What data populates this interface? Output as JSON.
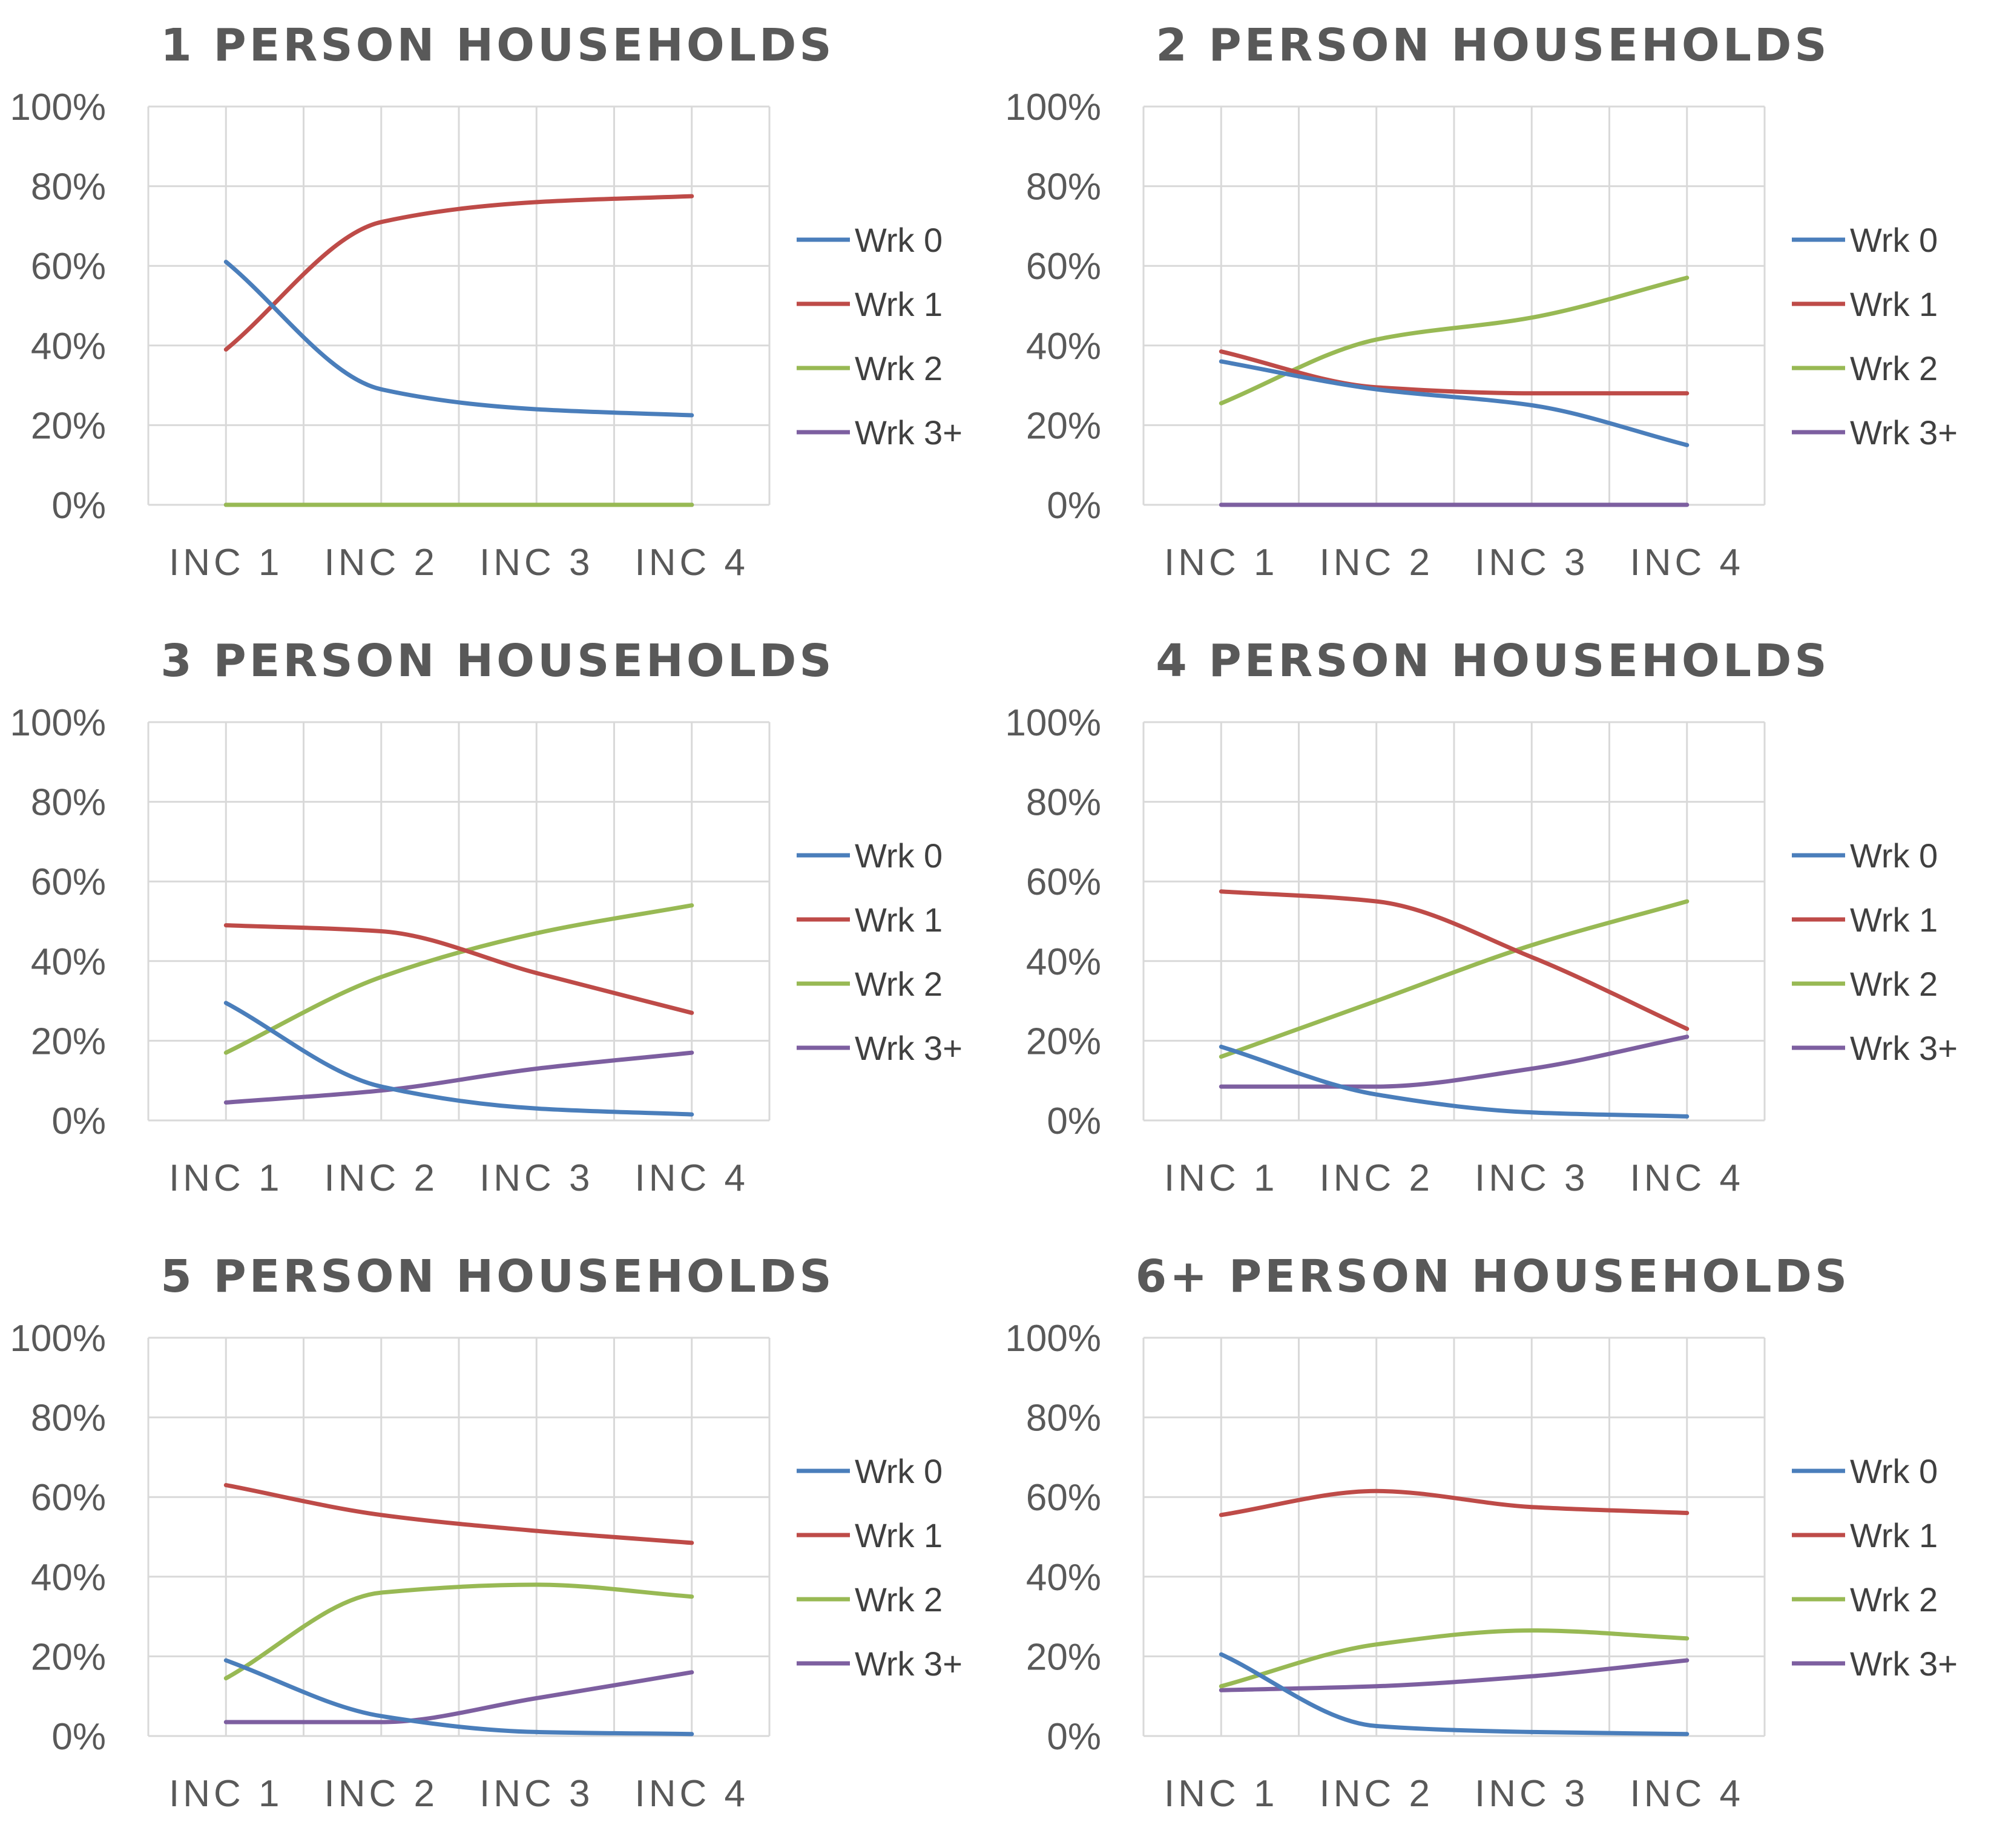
{
  "chart_data": [
    {
      "type": "line",
      "title": "1 PERSON HOUSEHOLDS",
      "categories": [
        "INC 1",
        "INC 2",
        "INC 3",
        "INC 4"
      ],
      "ylim": [
        0,
        100
      ],
      "yticks": [
        "0%",
        "20%",
        "40%",
        "60%",
        "80%",
        "100%"
      ],
      "grid": true,
      "legend": "right",
      "series": [
        {
          "name": "Wrk 0",
          "values": [
            61,
            29,
            24,
            22.5
          ]
        },
        {
          "name": "Wrk 1",
          "values": [
            39,
            71,
            76,
            77.5
          ]
        },
        {
          "name": "Wrk 2",
          "values": [
            0,
            0,
            0,
            0
          ]
        },
        {
          "name": "Wrk 3+",
          "values": [
            0,
            0,
            0,
            0
          ]
        }
      ]
    },
    {
      "type": "line",
      "title": "2 PERSON HOUSEHOLDS",
      "categories": [
        "INC 1",
        "INC 2",
        "INC 3",
        "INC 4"
      ],
      "ylim": [
        0,
        100
      ],
      "yticks": [
        "0%",
        "20%",
        "40%",
        "60%",
        "80%",
        "100%"
      ],
      "grid": true,
      "legend": "right",
      "series": [
        {
          "name": "Wrk 0",
          "values": [
            36,
            29,
            25,
            15
          ]
        },
        {
          "name": "Wrk 1",
          "values": [
            38.5,
            29.5,
            28,
            28
          ]
        },
        {
          "name": "Wrk 2",
          "values": [
            25.5,
            41.5,
            47,
            57
          ]
        },
        {
          "name": "Wrk 3+",
          "values": [
            0,
            0,
            0,
            0
          ]
        }
      ]
    },
    {
      "type": "line",
      "title": "3 PERSON HOUSEHOLDS",
      "categories": [
        "INC 1",
        "INC 2",
        "INC 3",
        "INC 4"
      ],
      "ylim": [
        0,
        100
      ],
      "yticks": [
        "0%",
        "20%",
        "40%",
        "60%",
        "80%",
        "100%"
      ],
      "grid": true,
      "legend": "right",
      "series": [
        {
          "name": "Wrk 0",
          "values": [
            29.5,
            8.5,
            3,
            1.5
          ]
        },
        {
          "name": "Wrk 1",
          "values": [
            49,
            47.5,
            37,
            27
          ]
        },
        {
          "name": "Wrk 2",
          "values": [
            17,
            36,
            47,
            54
          ]
        },
        {
          "name": "Wrk 3+",
          "values": [
            4.5,
            7.5,
            13,
            17
          ]
        }
      ]
    },
    {
      "type": "line",
      "title": "4 PERSON HOUSEHOLDS",
      "categories": [
        "INC 1",
        "INC 2",
        "INC 3",
        "INC 4"
      ],
      "ylim": [
        0,
        100
      ],
      "yticks": [
        "0%",
        "20%",
        "40%",
        "60%",
        "80%",
        "100%"
      ],
      "grid": true,
      "legend": "right",
      "series": [
        {
          "name": "Wrk 0",
          "values": [
            18.5,
            6.5,
            2,
            1
          ]
        },
        {
          "name": "Wrk 1",
          "values": [
            57.5,
            55,
            41,
            23
          ]
        },
        {
          "name": "Wrk 2",
          "values": [
            16,
            30,
            44,
            55
          ]
        },
        {
          "name": "Wrk 3+",
          "values": [
            8.5,
            8.5,
            13,
            21
          ]
        }
      ]
    },
    {
      "type": "line",
      "title": "5 PERSON HOUSEHOLDS",
      "categories": [
        "INC 1",
        "INC 2",
        "INC 3",
        "INC 4"
      ],
      "ylim": [
        0,
        100
      ],
      "yticks": [
        "0%",
        "20%",
        "40%",
        "60%",
        "80%",
        "100%"
      ],
      "grid": true,
      "legend": "right",
      "series": [
        {
          "name": "Wrk 0",
          "values": [
            19,
            5,
            1,
            0.5
          ]
        },
        {
          "name": "Wrk 1",
          "values": [
            63,
            55.5,
            51.5,
            48.5
          ]
        },
        {
          "name": "Wrk 2",
          "values": [
            14.5,
            36,
            38,
            35
          ]
        },
        {
          "name": "Wrk 3+",
          "values": [
            3.5,
            3.5,
            9.5,
            16
          ]
        }
      ]
    },
    {
      "type": "line",
      "title": "6+ PERSON HOUSEHOLDS",
      "categories": [
        "INC 1",
        "INC 2",
        "INC 3",
        "INC 4"
      ],
      "ylim": [
        0,
        100
      ],
      "yticks": [
        "0%",
        "20%",
        "40%",
        "60%",
        "80%",
        "100%"
      ],
      "grid": true,
      "legend": "right",
      "series": [
        {
          "name": "Wrk 0",
          "values": [
            20.5,
            2.5,
            1,
            0.5
          ]
        },
        {
          "name": "Wrk 1",
          "values": [
            55.5,
            61.5,
            57.5,
            56
          ]
        },
        {
          "name": "Wrk 2",
          "values": [
            12.5,
            23,
            26.5,
            24.5
          ]
        },
        {
          "name": "Wrk 3+",
          "values": [
            11.5,
            12.5,
            15,
            19
          ]
        }
      ]
    }
  ],
  "series_colors": [
    "#4a7ebb",
    "#be4b48",
    "#98b954",
    "#7d5fa0"
  ],
  "gridline_color": "#d9d9d9"
}
